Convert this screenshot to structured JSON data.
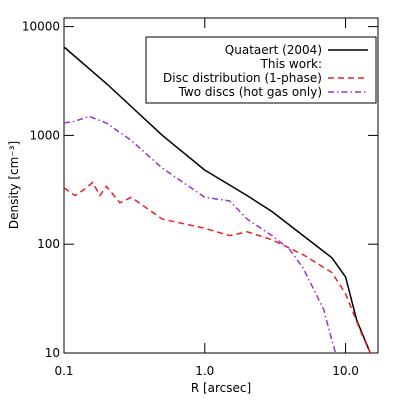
{
  "chart_data": {
    "type": "line",
    "x_label": "R [arcsec]",
    "y_label": "Density [cm⁻³]",
    "xscale": "log",
    "yscale": "log",
    "xlim": [
      0.1,
      17
    ],
    "ylim": [
      10,
      12000
    ],
    "xticks": [
      0.1,
      {
        "value": 1,
        "label": "1.0"
      },
      {
        "value": 10,
        "label": "10.0"
      }
    ],
    "yticks": [
      10,
      100,
      1000,
      10000
    ],
    "legend_position": "upper right",
    "legend_heading": "This work:",
    "series": [
      {
        "name": "Quataert (2004)",
        "color": "#000000",
        "linestyle": "solid",
        "x": [
          0.1,
          0.2,
          0.5,
          1,
          2,
          3,
          5,
          8,
          10,
          12,
          15
        ],
        "values": [
          6500,
          3000,
          1000,
          480,
          280,
          200,
          120,
          75,
          50,
          20,
          10
        ]
      },
      {
        "name": "Disc distribution (1-phase)",
        "color": "#e8231f",
        "linestyle": "dashed",
        "x": [
          0.1,
          0.12,
          0.14,
          0.16,
          0.18,
          0.2,
          0.25,
          0.3,
          0.5,
          1,
          1.5,
          2,
          3,
          5,
          8,
          10,
          13,
          15
        ],
        "values": [
          330,
          280,
          320,
          370,
          280,
          340,
          240,
          270,
          170,
          140,
          120,
          130,
          110,
          80,
          55,
          35,
          15,
          10
        ]
      },
      {
        "name": "Two discs (hot gas only)",
        "color": "#9b30d9",
        "linestyle": "dashdot",
        "x": [
          0.1,
          0.12,
          0.15,
          0.2,
          0.3,
          0.5,
          1,
          1.5,
          2,
          3,
          4,
          5,
          7,
          8,
          8.5
        ],
        "values": [
          1300,
          1350,
          1500,
          1300,
          900,
          500,
          270,
          250,
          170,
          120,
          90,
          60,
          25,
          13,
          10
        ]
      }
    ]
  }
}
